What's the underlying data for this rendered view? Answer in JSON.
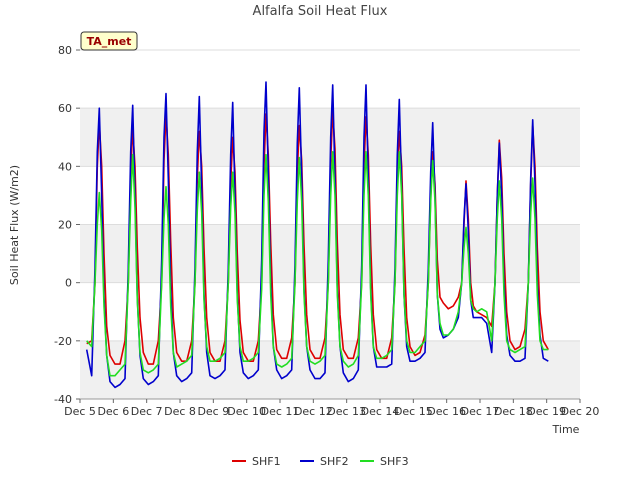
{
  "chart_data": {
    "type": "line",
    "title": "Alfalfa Soil Heat Flux",
    "xlabel": "Time",
    "ylabel": "Soil Heat Flux (W/m2)",
    "site_badge": "TA_met",
    "xlim": [
      0,
      15
    ],
    "ylim": [
      -40,
      80
    ],
    "x_ticks": [
      {
        "x": 0,
        "label": "Dec 5"
      },
      {
        "x": 1,
        "label": "Dec 6"
      },
      {
        "x": 2,
        "label": "Dec 7"
      },
      {
        "x": 3,
        "label": "Dec 8"
      },
      {
        "x": 4,
        "label": "Dec 9"
      },
      {
        "x": 5,
        "label": "Dec 10"
      },
      {
        "x": 6,
        "label": "Dec 11"
      },
      {
        "x": 7,
        "label": "Dec 12"
      },
      {
        "x": 8,
        "label": "Dec 13"
      },
      {
        "x": 9,
        "label": "Dec 14"
      },
      {
        "x": 10,
        "label": "Dec 15"
      },
      {
        "x": 11,
        "label": "Dec 16"
      },
      {
        "x": 12,
        "label": "Dec 17"
      },
      {
        "x": 13,
        "label": "Dec 18"
      },
      {
        "x": 14,
        "label": "Dec 19"
      },
      {
        "x": 15,
        "label": "Dec 20"
      }
    ],
    "y_ticks": [
      -40,
      -20,
      0,
      20,
      40,
      60,
      80
    ],
    "grid": true,
    "legend_position": "bottom",
    "series": [
      {
        "name": "SHF1",
        "color": "#dd0000",
        "x": [
          0.2,
          0.35,
          0.45,
          0.52,
          0.58,
          0.65,
          0.72,
          0.8,
          0.9,
          1.05,
          1.2,
          1.35,
          1.45,
          1.52,
          1.58,
          1.65,
          1.72,
          1.8,
          1.9,
          2.05,
          2.2,
          2.35,
          2.45,
          2.52,
          2.58,
          2.65,
          2.72,
          2.8,
          2.9,
          3.05,
          3.2,
          3.35,
          3.45,
          3.52,
          3.58,
          3.65,
          3.72,
          3.8,
          3.9,
          4.05,
          4.2,
          4.35,
          4.45,
          4.52,
          4.58,
          4.65,
          4.72,
          4.8,
          4.9,
          5.05,
          5.2,
          5.35,
          5.45,
          5.52,
          5.58,
          5.65,
          5.72,
          5.8,
          5.9,
          6.05,
          6.2,
          6.35,
          6.45,
          6.52,
          6.58,
          6.65,
          6.72,
          6.8,
          6.9,
          7.05,
          7.2,
          7.35,
          7.45,
          7.52,
          7.58,
          7.65,
          7.72,
          7.8,
          7.9,
          8.05,
          8.2,
          8.35,
          8.45,
          8.52,
          8.58,
          8.65,
          8.72,
          8.8,
          8.9,
          9.05,
          9.2,
          9.35,
          9.45,
          9.52,
          9.58,
          9.65,
          9.72,
          9.8,
          9.9,
          10.05,
          10.2,
          10.35,
          10.45,
          10.52,
          10.58,
          10.65,
          10.72,
          10.8,
          10.9,
          11.05,
          11.2,
          11.35,
          11.45,
          11.52,
          11.58,
          11.65,
          11.72,
          11.8,
          11.9,
          12.05,
          12.2,
          12.35,
          12.45,
          12.52,
          12.58,
          12.65,
          12.72,
          12.8,
          12.9,
          13.05,
          13.2,
          13.35,
          13.45,
          13.52,
          13.58,
          13.65,
          13.72,
          13.8,
          13.9,
          14.05
        ],
        "values": [
          -21,
          -20,
          0,
          40,
          55,
          40,
          10,
          -15,
          -25,
          -28,
          -28,
          -20,
          0,
          38,
          53,
          40,
          12,
          -12,
          -24,
          -28,
          -28,
          -20,
          0,
          42,
          58,
          44,
          14,
          -12,
          -24,
          -27,
          -27,
          -20,
          0,
          36,
          52,
          40,
          12,
          -12,
          -24,
          -27,
          -27,
          -20,
          0,
          34,
          50,
          38,
          10,
          -13,
          -24,
          -27,
          -27,
          -20,
          0,
          40,
          58,
          44,
          14,
          -11,
          -23,
          -26,
          -26,
          -19,
          0,
          38,
          54,
          42,
          13,
          -11,
          -23,
          -26,
          -26,
          -19,
          0,
          42,
          59,
          46,
          14,
          -11,
          -23,
          -26,
          -26,
          -19,
          0,
          40,
          57,
          44,
          13,
          -11,
          -23,
          -26,
          -26,
          -19,
          0,
          36,
          52,
          40,
          12,
          -12,
          -22,
          -25,
          -24,
          -18,
          0,
          30,
          45,
          34,
          8,
          -5,
          -7,
          -9,
          -8,
          -5,
          0,
          20,
          35,
          22,
          0,
          -8,
          -10,
          -11,
          -12,
          -15,
          0,
          30,
          49,
          36,
          10,
          -10,
          -20,
          -23,
          -22,
          -16,
          0,
          34,
          54,
          40,
          12,
          -10,
          -20,
          -23
        ]
      },
      {
        "name": "SHF2",
        "color": "#0000cc",
        "x": [
          0.2,
          0.35,
          0.45,
          0.52,
          0.58,
          0.65,
          0.72,
          0.8,
          0.9,
          1.05,
          1.2,
          1.35,
          1.45,
          1.52,
          1.58,
          1.65,
          1.72,
          1.8,
          1.9,
          2.05,
          2.2,
          2.35,
          2.45,
          2.52,
          2.58,
          2.65,
          2.72,
          2.8,
          2.9,
          3.05,
          3.2,
          3.35,
          3.45,
          3.52,
          3.58,
          3.65,
          3.72,
          3.8,
          3.9,
          4.05,
          4.2,
          4.35,
          4.45,
          4.52,
          4.58,
          4.65,
          4.72,
          4.8,
          4.9,
          5.05,
          5.2,
          5.35,
          5.45,
          5.52,
          5.58,
          5.65,
          5.72,
          5.8,
          5.9,
          6.05,
          6.2,
          6.35,
          6.45,
          6.52,
          6.58,
          6.65,
          6.72,
          6.8,
          6.9,
          7.05,
          7.2,
          7.35,
          7.45,
          7.52,
          7.58,
          7.65,
          7.72,
          7.8,
          7.9,
          8.05,
          8.2,
          8.35,
          8.45,
          8.52,
          8.58,
          8.65,
          8.72,
          8.8,
          8.9,
          9.05,
          9.2,
          9.35,
          9.45,
          9.52,
          9.58,
          9.65,
          9.72,
          9.8,
          9.9,
          10.05,
          10.2,
          10.35,
          10.45,
          10.52,
          10.58,
          10.65,
          10.72,
          10.8,
          10.9,
          11.05,
          11.2,
          11.35,
          11.45,
          11.52,
          11.58,
          11.65,
          11.72,
          11.8,
          11.9,
          12.05,
          12.2,
          12.35,
          12.45,
          12.52,
          12.58,
          12.65,
          12.72,
          12.8,
          12.9,
          13.05,
          13.2,
          13.35,
          13.45,
          13.52,
          13.58,
          13.65,
          13.72,
          13.8,
          13.9,
          14.05
        ],
        "values": [
          -23,
          -32,
          5,
          45,
          60,
          30,
          -5,
          -25,
          -34,
          -36,
          -35,
          -33,
          5,
          45,
          61,
          30,
          -5,
          -25,
          -33,
          -35,
          -34,
          -32,
          8,
          50,
          65,
          36,
          -2,
          -24,
          -32,
          -34,
          -33,
          -31,
          5,
          45,
          64,
          32,
          -4,
          -24,
          -32,
          -33,
          -32,
          -30,
          5,
          44,
          62,
          30,
          -4,
          -24,
          -31,
          -33,
          -32,
          -30,
          8,
          52,
          69,
          38,
          0,
          -22,
          -30,
          -33,
          -32,
          -30,
          6,
          48,
          67,
          36,
          -2,
          -22,
          -30,
          -33,
          -33,
          -31,
          8,
          50,
          68,
          36,
          -2,
          -22,
          -31,
          -34,
          -33,
          -30,
          6,
          50,
          68,
          36,
          -2,
          -22,
          -29,
          -29,
          -29,
          -28,
          5,
          44,
          63,
          32,
          -4,
          -22,
          -27,
          -27,
          -26,
          -24,
          5,
          38,
          55,
          30,
          -4,
          -16,
          -19,
          -18,
          -16,
          -12,
          0,
          22,
          34,
          18,
          -6,
          -12,
          -12,
          -12,
          -14,
          -24,
          0,
          30,
          48,
          30,
          0,
          -18,
          -25,
          -27,
          -27,
          -26,
          0,
          36,
          56,
          34,
          0,
          -18,
          -26,
          -27
        ]
      },
      {
        "name": "SHF3",
        "color": "#22dd22",
        "x": [
          0.2,
          0.35,
          0.45,
          0.52,
          0.58,
          0.65,
          0.72,
          0.8,
          0.9,
          1.05,
          1.2,
          1.35,
          1.45,
          1.52,
          1.58,
          1.65,
          1.72,
          1.8,
          1.9,
          2.05,
          2.2,
          2.35,
          2.45,
          2.52,
          2.58,
          2.65,
          2.72,
          2.8,
          2.9,
          3.05,
          3.2,
          3.35,
          3.45,
          3.52,
          3.58,
          3.65,
          3.72,
          3.8,
          3.9,
          4.05,
          4.2,
          4.35,
          4.45,
          4.52,
          4.58,
          4.65,
          4.72,
          4.8,
          4.9,
          5.05,
          5.2,
          5.35,
          5.45,
          5.52,
          5.58,
          5.65,
          5.72,
          5.8,
          5.9,
          6.05,
          6.2,
          6.35,
          6.45,
          6.52,
          6.58,
          6.65,
          6.72,
          6.8,
          6.9,
          7.05,
          7.2,
          7.35,
          7.45,
          7.52,
          7.58,
          7.65,
          7.72,
          7.8,
          7.9,
          8.05,
          8.2,
          8.35,
          8.45,
          8.52,
          8.58,
          8.65,
          8.72,
          8.8,
          8.9,
          9.05,
          9.2,
          9.35,
          9.45,
          9.52,
          9.58,
          9.65,
          9.72,
          9.8,
          9.9,
          10.05,
          10.2,
          10.35,
          10.45,
          10.52,
          10.58,
          10.65,
          10.72,
          10.8,
          10.9,
          11.05,
          11.2,
          11.35,
          11.45,
          11.52,
          11.58,
          11.65,
          11.72,
          11.8,
          11.9,
          12.05,
          12.2,
          12.35,
          12.45,
          12.52,
          12.58,
          12.65,
          12.72,
          12.8,
          12.9,
          13.05,
          13.2,
          13.35,
          13.45,
          13.52,
          13.58,
          13.65,
          13.72,
          13.8,
          13.9,
          14.05
        ],
        "values": [
          -20,
          -22,
          0,
          20,
          31,
          18,
          -8,
          -25,
          -32,
          -32,
          -30,
          -28,
          0,
          28,
          44,
          26,
          -6,
          -24,
          -30,
          -31,
          -30,
          -28,
          0,
          22,
          33,
          20,
          -8,
          -24,
          -29,
          -28,
          -27,
          -25,
          0,
          25,
          38,
          24,
          -6,
          -22,
          -27,
          -27,
          -26,
          -24,
          0,
          26,
          38,
          24,
          -6,
          -22,
          -27,
          -27,
          -26,
          -24,
          -2,
          30,
          44,
          28,
          -4,
          -22,
          -28,
          -29,
          -28,
          -26,
          0,
          28,
          43,
          28,
          -4,
          -22,
          -27,
          -28,
          -27,
          -25,
          0,
          30,
          45,
          30,
          -4,
          -22,
          -27,
          -29,
          -28,
          -25,
          0,
          30,
          45,
          30,
          -4,
          -22,
          -26,
          -26,
          -25,
          -23,
          0,
          30,
          45,
          30,
          -4,
          -20,
          -24,
          -24,
          -22,
          -20,
          0,
          28,
          42,
          28,
          -4,
          -14,
          -18,
          -18,
          -16,
          -10,
          0,
          12,
          19,
          10,
          -6,
          -9,
          -10,
          -9,
          -10,
          -20,
          0,
          22,
          35,
          22,
          -4,
          -20,
          -23,
          -24,
          -23,
          -22,
          0,
          24,
          36,
          22,
          -4,
          -20,
          -23,
          -23
        ]
      }
    ]
  }
}
